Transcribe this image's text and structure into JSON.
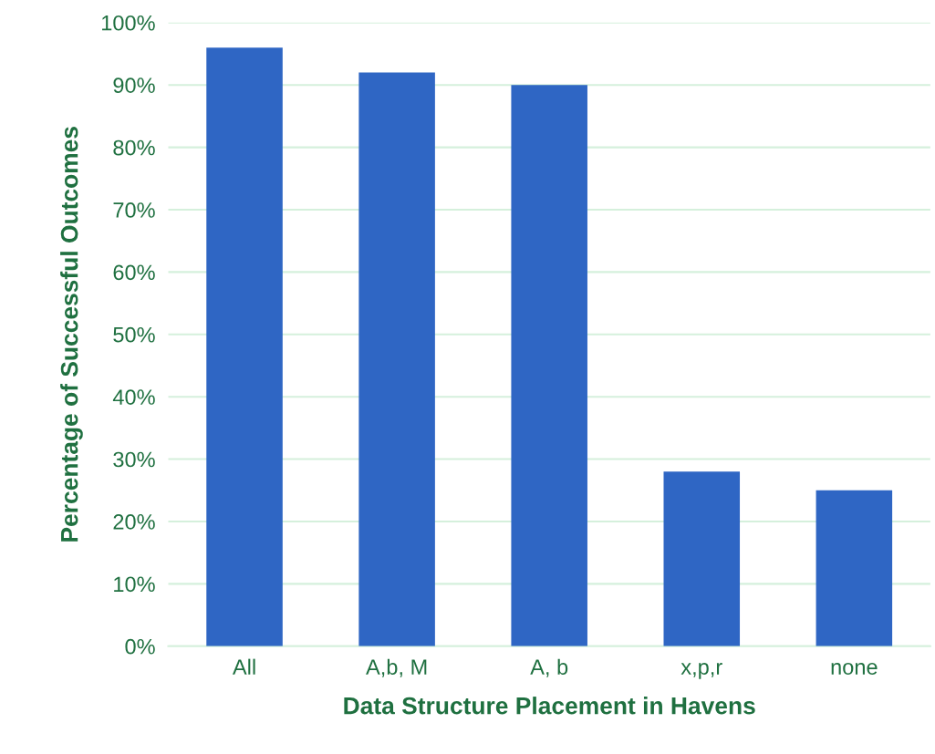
{
  "chart_data": {
    "type": "bar",
    "xlabel": "Data Structure Placement in Havens",
    "ylabel": "Percentage of Successful Outcomes",
    "categories": [
      "All",
      "A,b, M",
      "A, b",
      "x,p,r",
      "none"
    ],
    "values": [
      96,
      92,
      90,
      28,
      25
    ],
    "color": "#2f66c4",
    "ylim": [
      0,
      100
    ],
    "yticks": [
      {
        "value": 0,
        "label": "0%"
      },
      {
        "value": 10,
        "label": "10%"
      },
      {
        "value": 20,
        "label": "20%"
      },
      {
        "value": 30,
        "label": "30%"
      },
      {
        "value": 40,
        "label": "40%"
      },
      {
        "value": 50,
        "label": "50%"
      },
      {
        "value": 60,
        "label": "60%"
      },
      {
        "value": 70,
        "label": "70%"
      },
      {
        "value": 80,
        "label": "80%"
      },
      {
        "value": 90,
        "label": "90%"
      },
      {
        "value": 100,
        "label": "100%"
      }
    ],
    "grid": "y",
    "legend": false
  }
}
